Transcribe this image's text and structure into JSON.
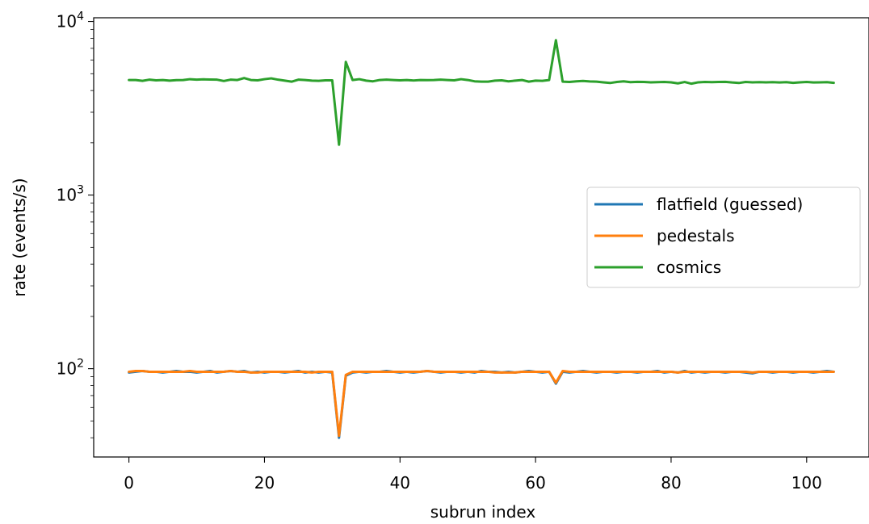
{
  "chart_data": {
    "type": "line",
    "xlabel": "subrun index",
    "ylabel": "rate (events/s)",
    "xlim": [
      -5.2,
      109.2
    ],
    "ylim": [
      31,
      10500
    ],
    "yscale": "log",
    "grid": false,
    "legend_position": "center-right",
    "x_ticks": [
      0,
      20,
      40,
      60,
      80,
      100
    ],
    "x_tick_labels": [
      "0",
      "20",
      "40",
      "60",
      "80",
      "100"
    ],
    "y_ticks": [
      100,
      1000,
      10000
    ],
    "y_tick_labels": [
      {
        "base": "10",
        "exp": "2"
      },
      {
        "base": "10",
        "exp": "3"
      },
      {
        "base": "10",
        "exp": "4"
      }
    ],
    "x": [
      0,
      1,
      2,
      3,
      4,
      5,
      6,
      7,
      8,
      9,
      10,
      11,
      12,
      13,
      14,
      15,
      16,
      17,
      18,
      19,
      20,
      21,
      22,
      23,
      24,
      25,
      26,
      27,
      28,
      29,
      30,
      31,
      32,
      33,
      34,
      35,
      36,
      37,
      38,
      39,
      40,
      41,
      42,
      43,
      44,
      45,
      46,
      47,
      48,
      49,
      50,
      51,
      52,
      53,
      54,
      55,
      56,
      57,
      58,
      59,
      60,
      61,
      62,
      63,
      64,
      65,
      66,
      67,
      68,
      69,
      70,
      71,
      72,
      73,
      74,
      75,
      76,
      77,
      78,
      79,
      80,
      81,
      82,
      83,
      84,
      85,
      86,
      87,
      88,
      89,
      90,
      91,
      92,
      93,
      94,
      95,
      96,
      97,
      98,
      99,
      100,
      101,
      102,
      103,
      104
    ],
    "series": [
      {
        "name": "flatfield (guessed)",
        "color": "#1f77b4",
        "values": [
          95,
          96,
          97,
          96,
          96,
          95,
          96,
          97,
          96,
          96,
          95,
          96,
          97,
          95,
          96,
          97,
          96,
          97,
          95,
          96,
          95,
          96,
          96,
          95,
          96,
          97,
          95,
          96,
          95,
          96,
          95,
          40,
          91,
          95,
          96,
          95,
          96,
          96,
          97,
          96,
          95,
          96,
          95,
          96,
          97,
          96,
          95,
          96,
          96,
          95,
          96,
          95,
          97,
          96,
          96,
          95,
          96,
          95,
          96,
          97,
          96,
          95,
          96,
          82,
          96,
          95,
          96,
          97,
          96,
          95,
          96,
          96,
          95,
          96,
          96,
          95,
          96,
          96,
          97,
          95,
          96,
          95,
          97,
          95,
          96,
          95,
          96,
          96,
          95,
          96,
          96,
          95,
          94,
          96,
          96,
          95,
          96,
          96,
          95,
          96,
          96,
          95,
          96,
          97,
          96
        ]
      },
      {
        "name": "pedestals",
        "color": "#ff7f0e",
        "values": [
          96,
          97,
          97,
          96,
          96,
          96,
          96,
          96,
          96,
          97,
          96,
          96,
          96,
          96,
          96,
          97,
          96,
          96,
          95,
          95,
          96,
          96,
          96,
          96,
          96,
          96,
          96,
          95,
          96,
          96,
          96,
          41,
          92,
          96,
          96,
          96,
          96,
          96,
          96,
          96,
          96,
          96,
          96,
          96,
          97,
          96,
          96,
          96,
          96,
          96,
          96,
          96,
          96,
          96,
          95,
          95,
          95,
          95,
          96,
          96,
          96,
          96,
          96,
          83,
          97,
          96,
          96,
          96,
          96,
          96,
          96,
          96,
          96,
          96,
          96,
          96,
          96,
          96,
          96,
          96,
          96,
          95,
          96,
          96,
          96,
          96,
          96,
          96,
          96,
          96,
          96,
          96,
          95,
          96,
          96,
          96,
          96,
          96,
          96,
          96,
          96,
          96,
          96,
          96,
          96
        ]
      },
      {
        "name": "cosmics",
        "color": "#2ca02c",
        "values": [
          4600,
          4600,
          4550,
          4620,
          4580,
          4600,
          4560,
          4590,
          4600,
          4650,
          4620,
          4640,
          4630,
          4620,
          4540,
          4620,
          4600,
          4720,
          4600,
          4580,
          4650,
          4700,
          4620,
          4560,
          4500,
          4620,
          4600,
          4560,
          4550,
          4580,
          4580,
          1950,
          5850,
          4600,
          4650,
          4560,
          4520,
          4600,
          4620,
          4600,
          4580,
          4600,
          4570,
          4600,
          4590,
          4600,
          4620,
          4600,
          4580,
          4650,
          4600,
          4520,
          4500,
          4500,
          4560,
          4580,
          4520,
          4560,
          4600,
          4500,
          4560,
          4550,
          4600,
          7800,
          4500,
          4480,
          4520,
          4540,
          4510,
          4500,
          4460,
          4420,
          4480,
          4520,
          4470,
          4490,
          4480,
          4460,
          4470,
          4480,
          4460,
          4400,
          4480,
          4380,
          4460,
          4480,
          4470,
          4480,
          4490,
          4450,
          4420,
          4480,
          4460,
          4470,
          4460,
          4470,
          4450,
          4470,
          4430,
          4460,
          4480,
          4450,
          4460,
          4470,
          4430
        ]
      }
    ]
  }
}
